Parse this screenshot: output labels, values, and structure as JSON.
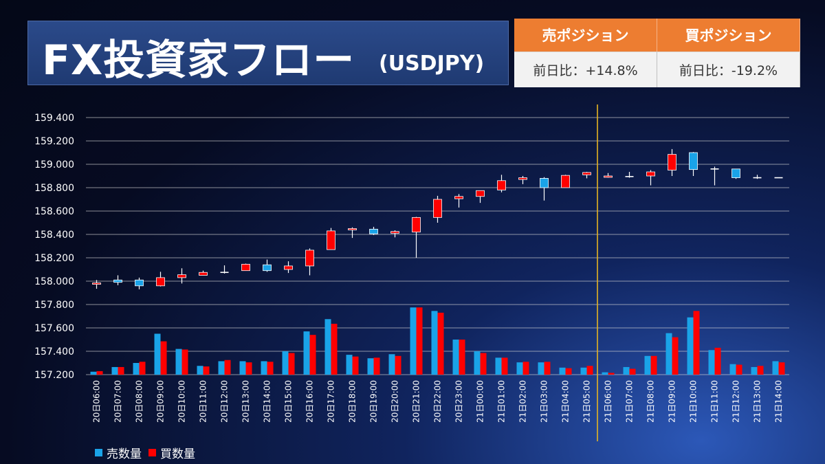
{
  "header": {
    "title": "FX投資家フロー",
    "subtitle": "(USDJPY)"
  },
  "positions": {
    "sell_label": "売ポジション",
    "buy_label": "買ポジション",
    "sell_change": "前日比：+14.8%",
    "buy_change": "前日比：-19.2%"
  },
  "legend": {
    "sell": "売数量",
    "buy": "買数量"
  },
  "colors": {
    "sell": "#1aa3e8",
    "buy": "#ff0000",
    "marker": "#e6b422",
    "grid": "#d9d9d9"
  },
  "chart_data": {
    "type": "bar",
    "ylim": [
      157.2,
      159.5
    ],
    "yticks": [
      "157.200",
      "157.400",
      "157.600",
      "157.800",
      "158.000",
      "158.200",
      "158.400",
      "158.600",
      "158.800",
      "159.000",
      "159.200",
      "159.400"
    ],
    "categories": [
      "20日06:00",
      "20日07:00",
      "20日08:00",
      "20日09:00",
      "20日10:00",
      "20日11:00",
      "20日12:00",
      "20日13:00",
      "20日14:00",
      "20日15:00",
      "20日16:00",
      "20日17:00",
      "20日18:00",
      "20日19:00",
      "20日20:00",
      "20日21:00",
      "20日22:00",
      "20日23:00",
      "21日00:00",
      "21日01:00",
      "21日02:00",
      "21日03:00",
      "21日04:00",
      "21日05:00",
      "21日06:00",
      "21日07:00",
      "21日08:00",
      "21日09:00",
      "21日10:00",
      "21日11:00",
      "21日12:00",
      "21日13:00",
      "21日14:00"
    ],
    "marker_after_index": 23,
    "candles": [
      {
        "o": 157.985,
        "h": 158.01,
        "l": 157.935,
        "c": 157.98
      },
      {
        "o": 157.99,
        "h": 158.05,
        "l": 157.965,
        "c": 158.01
      },
      {
        "o": 157.96,
        "h": 158.03,
        "l": 157.93,
        "c": 158.01
      },
      {
        "o": 158.03,
        "h": 158.08,
        "l": 157.955,
        "c": 157.96
      },
      {
        "o": 158.055,
        "h": 158.11,
        "l": 157.98,
        "c": 158.03
      },
      {
        "o": 158.075,
        "h": 158.09,
        "l": 158.05,
        "c": 158.05
      },
      {
        "o": 158.075,
        "h": 158.135,
        "l": 158.065,
        "c": 158.075
      },
      {
        "o": 158.145,
        "h": 158.15,
        "l": 158.09,
        "c": 158.09
      },
      {
        "o": 158.09,
        "h": 158.185,
        "l": 158.08,
        "c": 158.14
      },
      {
        "o": 158.13,
        "h": 158.17,
        "l": 158.07,
        "c": 158.1
      },
      {
        "o": 158.265,
        "h": 158.28,
        "l": 158.05,
        "c": 158.13
      },
      {
        "o": 158.43,
        "h": 158.455,
        "l": 158.27,
        "c": 158.27
      },
      {
        "o": 158.45,
        "h": 158.46,
        "l": 158.37,
        "c": 158.44
      },
      {
        "o": 158.405,
        "h": 158.465,
        "l": 158.395,
        "c": 158.445
      },
      {
        "o": 158.425,
        "h": 158.435,
        "l": 158.375,
        "c": 158.41
      },
      {
        "o": 158.545,
        "h": 158.55,
        "l": 158.2,
        "c": 158.42
      },
      {
        "o": 158.7,
        "h": 158.73,
        "l": 158.5,
        "c": 158.545
      },
      {
        "o": 158.725,
        "h": 158.745,
        "l": 158.63,
        "c": 158.705
      },
      {
        "o": 158.775,
        "h": 158.77,
        "l": 158.67,
        "c": 158.725
      },
      {
        "o": 158.86,
        "h": 158.91,
        "l": 158.76,
        "c": 158.78
      },
      {
        "o": 158.885,
        "h": 158.9,
        "l": 158.83,
        "c": 158.87
      },
      {
        "o": 158.8,
        "h": 158.89,
        "l": 158.69,
        "c": 158.88
      },
      {
        "o": 158.905,
        "h": 158.91,
        "l": 158.8,
        "c": 158.8
      },
      {
        "o": 158.93,
        "h": 158.935,
        "l": 158.88,
        "c": 158.91
      },
      {
        "o": 158.9,
        "h": 158.925,
        "l": 158.885,
        "c": 158.89
      },
      {
        "o": 158.895,
        "h": 158.935,
        "l": 158.885,
        "c": 158.895
      },
      {
        "o": 158.935,
        "h": 158.95,
        "l": 158.82,
        "c": 158.9
      },
      {
        "o": 159.085,
        "h": 159.13,
        "l": 158.9,
        "c": 158.95
      },
      {
        "o": 158.955,
        "h": 159.105,
        "l": 158.9,
        "c": 159.1
      },
      {
        "o": 158.96,
        "h": 158.98,
        "l": 158.82,
        "c": 158.96
      },
      {
        "o": 158.885,
        "h": 158.96,
        "l": 158.875,
        "c": 158.96
      },
      {
        "o": 158.885,
        "h": 158.91,
        "l": 158.875,
        "c": 158.885
      },
      {
        "o": 158.885,
        "h": 158.885,
        "l": 158.885,
        "c": 158.885
      }
    ],
    "series": [
      {
        "name": "売数量",
        "values": [
          157.225,
          157.265,
          157.3,
          157.55,
          157.42,
          157.275,
          157.315,
          157.315,
          157.315,
          157.4,
          157.57,
          157.675,
          157.37,
          157.34,
          157.375,
          157.775,
          157.745,
          157.5,
          157.4,
          157.345,
          157.305,
          157.305,
          157.26,
          157.26,
          157.22,
          157.265,
          157.36,
          157.555,
          157.69,
          157.41,
          157.29,
          157.265,
          157.315
        ]
      },
      {
        "name": "買数量",
        "values": [
          157.23,
          157.265,
          157.31,
          157.485,
          157.415,
          157.27,
          157.325,
          157.305,
          157.31,
          157.385,
          157.54,
          157.635,
          157.355,
          157.345,
          157.36,
          157.775,
          157.73,
          157.5,
          157.385,
          157.345,
          157.31,
          157.31,
          157.255,
          157.275,
          157.215,
          157.25,
          157.36,
          157.52,
          157.745,
          157.43,
          157.285,
          157.275,
          157.305
        ]
      }
    ]
  }
}
